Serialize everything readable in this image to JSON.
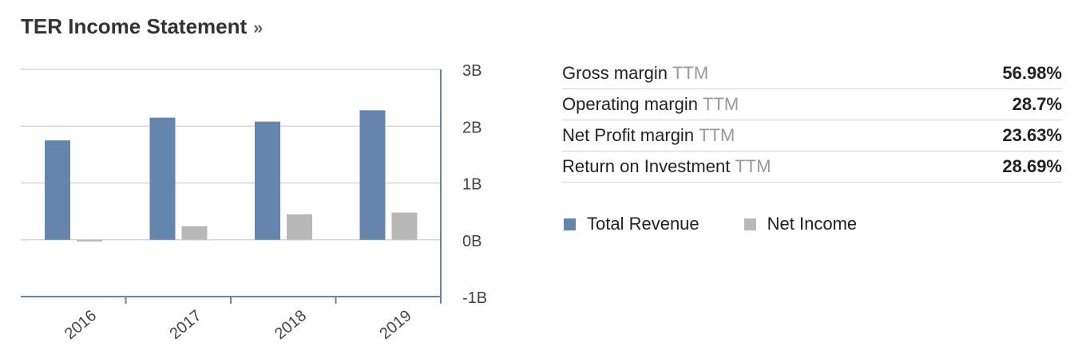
{
  "header": {
    "title": "TER Income Statement",
    "arrow": "»"
  },
  "chart_data": {
    "type": "bar",
    "categories": [
      "2016",
      "2017",
      "2018",
      "2019"
    ],
    "series": [
      {
        "name": "Total Revenue",
        "color": "#6585AD",
        "values": [
          1.75,
          2.15,
          2.08,
          2.28
        ]
      },
      {
        "name": "Net Income",
        "color": "#B8B8B8",
        "values": [
          -0.03,
          0.24,
          0.45,
          0.48
        ]
      }
    ],
    "y_ticks": [
      {
        "value": 3,
        "label": "3B"
      },
      {
        "value": 2,
        "label": "2B"
      },
      {
        "value": 1,
        "label": "1B"
      },
      {
        "value": 0,
        "label": "0B"
      },
      {
        "value": -1,
        "label": "-1B"
      }
    ],
    "ylim": [
      -1,
      3
    ],
    "yunit": "B",
    "grid": true,
    "legend_position": "right"
  },
  "metrics": [
    {
      "label": "Gross margin",
      "suffix": "TTM",
      "value": "56.98%"
    },
    {
      "label": "Operating margin",
      "suffix": "TTM",
      "value": "28.7%"
    },
    {
      "label": "Net Profit margin",
      "suffix": "TTM",
      "value": "23.63%"
    },
    {
      "label": "Return on Investment",
      "suffix": "TTM",
      "value": "28.69%"
    }
  ]
}
